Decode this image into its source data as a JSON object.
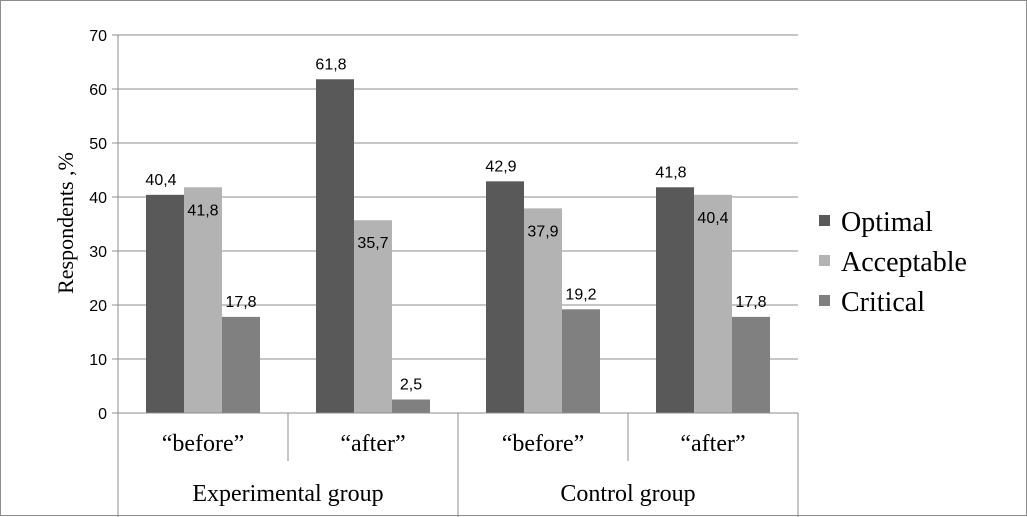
{
  "chart_data": {
    "type": "bar",
    "ylabel": "Respondents ,%",
    "ylim": [
      0,
      70
    ],
    "yticks": [
      "0",
      "10",
      "20",
      "30",
      "40",
      "50",
      "60",
      "70"
    ],
    "grid": true,
    "legend_position": "right",
    "categories": [
      "“before”",
      "“after”",
      "“before”",
      "“after”"
    ],
    "groups": [
      "Experimental group",
      "Control group"
    ],
    "series": [
      {
        "name": "Optimal",
        "color": "#595959",
        "values": [
          40.4,
          61.8,
          42.9,
          41.8
        ],
        "labels": [
          "40,4",
          "61,8",
          "42,9",
          "41,8"
        ]
      },
      {
        "name": "Acceptable",
        "color": "#b3b3b3",
        "values": [
          41.8,
          35.7,
          37.9,
          40.4
        ],
        "labels": [
          "41,8",
          "35,7",
          "37,9",
          "40,4"
        ]
      },
      {
        "name": "Critical",
        "color": "#808080",
        "values": [
          17.8,
          2.5,
          19.2,
          17.8
        ],
        "labels": [
          "17,8",
          "2,5",
          "19,2",
          "17,8"
        ]
      }
    ]
  }
}
